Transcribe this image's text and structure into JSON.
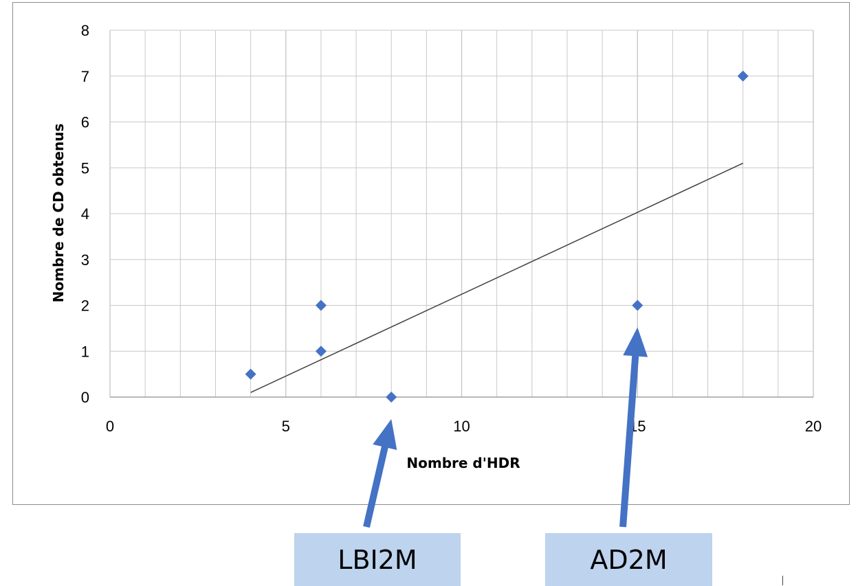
{
  "chart_data": {
    "type": "scatter",
    "title": "",
    "xlabel": "Nombre d'HDR",
    "ylabel": "Nombre de CD obtenus",
    "xlim": [
      0,
      20
    ],
    "ylim": [
      0,
      8
    ],
    "x_ticks": [
      "0",
      "5",
      "10",
      "15",
      "20"
    ],
    "y_ticks": [
      "0",
      "1",
      "2",
      "3",
      "4",
      "5",
      "6",
      "7",
      "8"
    ],
    "grid": true,
    "legend": "none",
    "series": [
      {
        "points": [
          {
            "x": 4,
            "y": 0.5
          },
          {
            "x": 6,
            "y": 2
          },
          {
            "x": 6,
            "y": 1
          },
          {
            "x": 8,
            "y": 0
          },
          {
            "x": 15,
            "y": 2
          },
          {
            "x": 18,
            "y": 7
          }
        ],
        "color": "#4472c4"
      }
    ],
    "trendline": {
      "type": "linear",
      "from": {
        "x": 4,
        "y": 0.1
      },
      "to": {
        "x": 18,
        "y": 5.1
      },
      "color": "#404040"
    },
    "annotations": [
      {
        "label": "LBI2M",
        "points_to": {
          "x": 8,
          "y": 0
        }
      },
      {
        "label": "AD2M",
        "points_to": {
          "x": 15,
          "y": 2
        }
      }
    ]
  },
  "colors": {
    "marker": "#4472c4",
    "arrow": "#4472c4",
    "callout_fill": "#bdd3ee",
    "grid": "#c8c8c8"
  }
}
